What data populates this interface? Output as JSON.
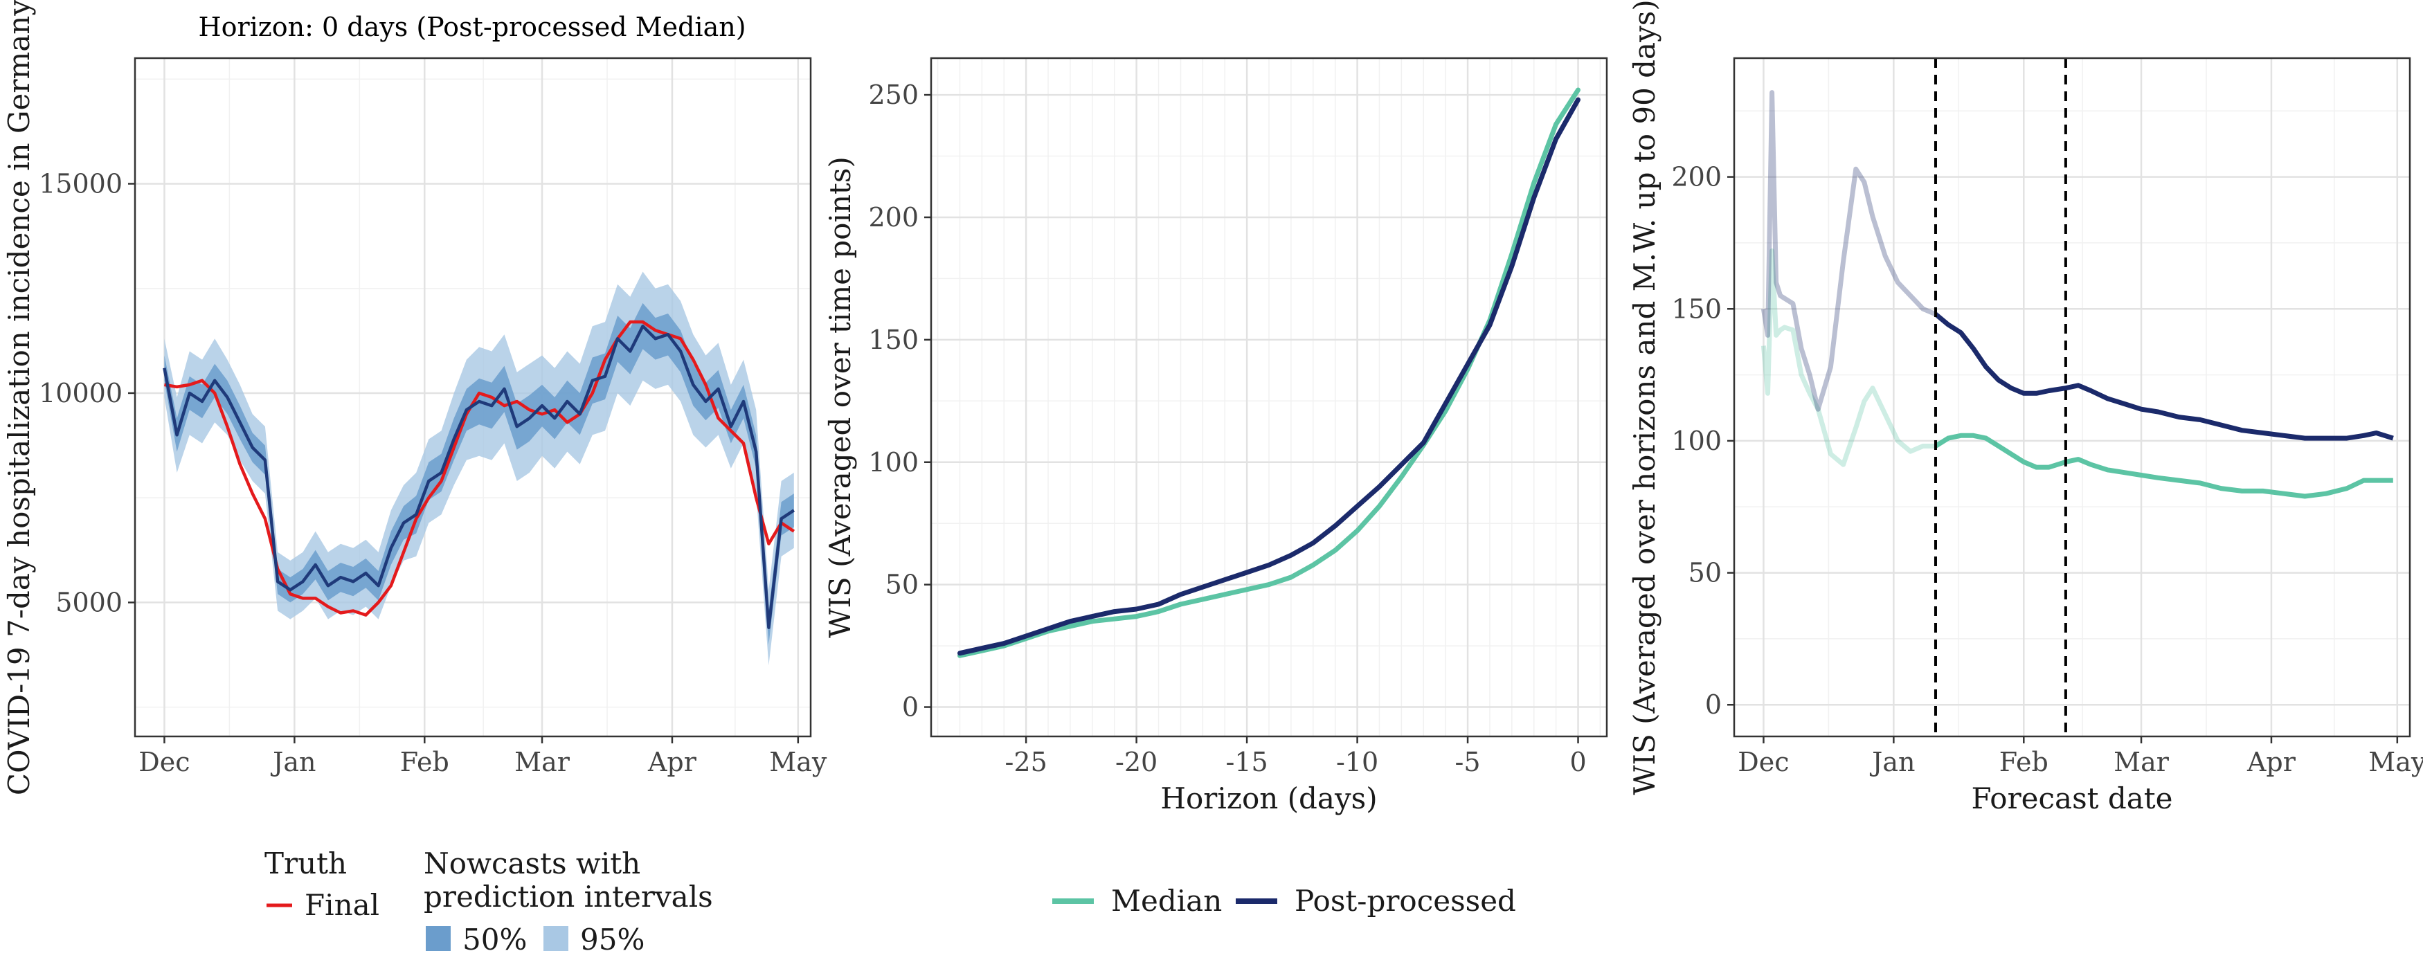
{
  "colors": {
    "truth": "#e41a1c",
    "nowcast_line": "#1f3a7a",
    "band50": "#6b9dcc",
    "band95": "#a9c8e4",
    "median": "#5cc4a4",
    "postprocessed": "#1b2a6b"
  },
  "legends": {
    "truth_title": "Truth",
    "truth_final": "Final",
    "nowcast_title_line1": "Nowcasts with",
    "nowcast_title_line2": "prediction intervals",
    "pi50": "50%",
    "pi95": "95%",
    "median": "Median",
    "postprocessed": "Post-processed"
  },
  "chart_data": [
    {
      "type": "line",
      "title": "Horizon: 0 days (Post-processed Median)",
      "xlabel": "",
      "ylabel": "COVID-19 7-day hospitalization incidence in Germany",
      "ylim": [
        1800,
        18000
      ],
      "yticks": [
        5000,
        10000,
        15000
      ],
      "xlim": [
        "2021-11-24",
        "2022-05-04"
      ],
      "xticks": [
        {
          "date": "2021-12-01",
          "label": "Dec"
        },
        {
          "date": "2022-01-01",
          "label": "Jan"
        },
        {
          "date": "2022-02-01",
          "label": "Feb"
        },
        {
          "date": "2022-03-01",
          "label": "Mar"
        },
        {
          "date": "2022-04-01",
          "label": "Apr"
        },
        {
          "date": "2022-05-01",
          "label": "May"
        }
      ],
      "grid": true,
      "series": [
        {
          "name": "Final",
          "x": [
            "2021-12-01",
            "2021-12-04",
            "2021-12-07",
            "2021-12-10",
            "2021-12-13",
            "2021-12-16",
            "2021-12-19",
            "2021-12-22",
            "2021-12-25",
            "2021-12-28",
            "2021-12-31",
            "2022-01-03",
            "2022-01-06",
            "2022-01-09",
            "2022-01-12",
            "2022-01-15",
            "2022-01-18",
            "2022-01-21",
            "2022-01-24",
            "2022-01-27",
            "2022-01-30",
            "2022-02-02",
            "2022-02-05",
            "2022-02-08",
            "2022-02-11",
            "2022-02-14",
            "2022-02-17",
            "2022-02-20",
            "2022-02-23",
            "2022-02-26",
            "2022-03-01",
            "2022-03-04",
            "2022-03-07",
            "2022-03-10",
            "2022-03-13",
            "2022-03-16",
            "2022-03-19",
            "2022-03-22",
            "2022-03-25",
            "2022-03-28",
            "2022-03-31",
            "2022-04-03",
            "2022-04-06",
            "2022-04-09",
            "2022-04-12",
            "2022-04-15",
            "2022-04-18",
            "2022-04-21",
            "2022-04-24",
            "2022-04-27",
            "2022-04-30"
          ],
          "y": [
            10200,
            10150,
            10200,
            10300,
            10000,
            9200,
            8300,
            7600,
            7000,
            5800,
            5200,
            5100,
            5100,
            4900,
            4750,
            4800,
            4700,
            5000,
            5400,
            6200,
            7000,
            7500,
            7900,
            8700,
            9500,
            10000,
            9900,
            9700,
            9800,
            9600,
            9500,
            9600,
            9300,
            9500,
            10000,
            10800,
            11300,
            11700,
            11700,
            11500,
            11400,
            11300,
            10800,
            10200,
            9400,
            9100,
            8800,
            7500,
            6400,
            6900,
            6700
          ]
        },
        {
          "name": "Post-processed Median",
          "x": [
            "2021-12-01",
            "2021-12-04",
            "2021-12-07",
            "2021-12-10",
            "2021-12-13",
            "2021-12-16",
            "2021-12-19",
            "2021-12-22",
            "2021-12-25",
            "2021-12-28",
            "2021-12-31",
            "2022-01-03",
            "2022-01-06",
            "2022-01-09",
            "2022-01-12",
            "2022-01-15",
            "2022-01-18",
            "2022-01-21",
            "2022-01-24",
            "2022-01-27",
            "2022-01-30",
            "2022-02-02",
            "2022-02-05",
            "2022-02-08",
            "2022-02-11",
            "2022-02-14",
            "2022-02-17",
            "2022-02-20",
            "2022-02-23",
            "2022-02-26",
            "2022-03-01",
            "2022-03-04",
            "2022-03-07",
            "2022-03-10",
            "2022-03-13",
            "2022-03-16",
            "2022-03-19",
            "2022-03-22",
            "2022-03-25",
            "2022-03-28",
            "2022-03-31",
            "2022-04-03",
            "2022-04-06",
            "2022-04-09",
            "2022-04-12",
            "2022-04-15",
            "2022-04-18",
            "2022-04-21",
            "2022-04-24",
            "2022-04-27",
            "2022-04-30"
          ],
          "y": [
            10600,
            9000,
            10000,
            9800,
            10300,
            9900,
            9300,
            8700,
            8400,
            5500,
            5300,
            5500,
            5900,
            5400,
            5600,
            5500,
            5700,
            5400,
            6300,
            6900,
            7100,
            7900,
            8100,
            8900,
            9600,
            9800,
            9700,
            10100,
            9200,
            9400,
            9700,
            9400,
            9800,
            9500,
            10300,
            10400,
            11300,
            11000,
            11600,
            11300,
            11400,
            11000,
            10200,
            9800,
            10100,
            9200,
            9800,
            8600,
            4400,
            7000,
            7200
          ]
        }
      ],
      "bands": [
        {
          "name": "95%",
          "halfwidth": [
            700,
            900,
            1000,
            1000,
            1000,
            900,
            900,
            800,
            800,
            700,
            700,
            700,
            800,
            800,
            800,
            800,
            800,
            800,
            900,
            900,
            1000,
            1000,
            1000,
            1100,
            1200,
            1300,
            1300,
            1300,
            1300,
            1300,
            1200,
            1200,
            1200,
            1200,
            1300,
            1300,
            1300,
            1300,
            1300,
            1200,
            1200,
            1200,
            1200,
            1100,
            1100,
            1000,
            1000,
            1000,
            900,
            900,
            900
          ]
        },
        {
          "name": "50%",
          "halfwidth": [
            300,
            400,
            400,
            400,
            400,
            400,
            400,
            350,
            350,
            300,
            300,
            300,
            350,
            350,
            350,
            350,
            350,
            350,
            400,
            400,
            450,
            450,
            450,
            500,
            500,
            550,
            550,
            550,
            550,
            550,
            500,
            500,
            500,
            500,
            550,
            550,
            550,
            550,
            550,
            500,
            500,
            500,
            500,
            450,
            450,
            400,
            400,
            400,
            400,
            400,
            400
          ]
        }
      ]
    },
    {
      "type": "line",
      "title": "",
      "xlabel": "Horizon (days)",
      "ylabel": "WIS (Averaged over time points)",
      "xlim": [
        -29.3,
        1.3
      ],
      "ylim": [
        -12,
        265
      ],
      "xticks": [
        -25,
        -20,
        -15,
        -10,
        -5,
        0
      ],
      "yticks": [
        0,
        50,
        100,
        150,
        200,
        250
      ],
      "grid": true,
      "x": [
        -28,
        -27,
        -26,
        -25,
        -24,
        -23,
        -22,
        -21,
        -20,
        -19,
        -18,
        -17,
        -16,
        -15,
        -14,
        -13,
        -12,
        -11,
        -10,
        -9,
        -8,
        -7,
        -6,
        -5,
        -4,
        -3,
        -2,
        -1,
        0
      ],
      "series": [
        {
          "name": "Median",
          "values": [
            21,
            23,
            25,
            28,
            31,
            33,
            35,
            36,
            37,
            39,
            42,
            44,
            46,
            48,
            50,
            53,
            58,
            64,
            72,
            82,
            94,
            107,
            121,
            138,
            158,
            185,
            214,
            238,
            252
          ]
        },
        {
          "name": "Post-processed",
          "values": [
            22,
            24,
            26,
            29,
            32,
            35,
            37,
            39,
            40,
            42,
            46,
            49,
            52,
            55,
            58,
            62,
            67,
            74,
            82,
            90,
            99,
            108,
            124,
            140,
            156,
            180,
            208,
            232,
            248
          ]
        }
      ]
    },
    {
      "type": "line",
      "title": "",
      "xlabel": "Forecast date",
      "ylabel": "WIS (Averaged over horizons and M.W. up to 90 days)",
      "xlim": [
        "2021-11-24",
        "2022-05-04"
      ],
      "ylim": [
        -12,
        245
      ],
      "yticks": [
        0,
        50,
        100,
        150,
        200
      ],
      "xticks": [
        {
          "date": "2021-12-01",
          "label": "Dec"
        },
        {
          "date": "2022-01-01",
          "label": "Jan"
        },
        {
          "date": "2022-02-01",
          "label": "Feb"
        },
        {
          "date": "2022-03-01",
          "label": "Mar"
        },
        {
          "date": "2022-04-01",
          "label": "Apr"
        },
        {
          "date": "2022-05-01",
          "label": "May"
        }
      ],
      "grid": true,
      "vlines": [
        "2022-01-11",
        "2022-02-11"
      ],
      "series": [
        {
          "name": "Median",
          "x": [
            "2021-12-01",
            "2021-12-02",
            "2021-12-03",
            "2021-12-04",
            "2021-12-05",
            "2021-12-06",
            "2021-12-08",
            "2021-12-10",
            "2021-12-12",
            "2021-12-14",
            "2021-12-17",
            "2021-12-20",
            "2021-12-23",
            "2021-12-25",
            "2021-12-27",
            "2021-12-30",
            "2022-01-02",
            "2022-01-05",
            "2022-01-08",
            "2022-01-11",
            "2022-01-14",
            "2022-01-17",
            "2022-01-20",
            "2022-01-23",
            "2022-01-26",
            "2022-01-29",
            "2022-02-01",
            "2022-02-04",
            "2022-02-07",
            "2022-02-11",
            "2022-02-14",
            "2022-02-17",
            "2022-02-21",
            "2022-02-25",
            "2022-03-01",
            "2022-03-05",
            "2022-03-10",
            "2022-03-15",
            "2022-03-20",
            "2022-03-25",
            "2022-03-30",
            "2022-04-04",
            "2022-04-09",
            "2022-04-14",
            "2022-04-19",
            "2022-04-23",
            "2022-04-26",
            "2022-04-30"
          ],
          "values": [
            136,
            118,
            172,
            140,
            142,
            143,
            142,
            125,
            118,
            112,
            95,
            91,
            105,
            115,
            120,
            110,
            100,
            96,
            98,
            98,
            101,
            102,
            102,
            101,
            98,
            95,
            92,
            90,
            90,
            92,
            93,
            91,
            89,
            88,
            87,
            86,
            85,
            84,
            82,
            81,
            81,
            80,
            79,
            80,
            82,
            85,
            85,
            85
          ]
        },
        {
          "name": "Post-processed",
          "x": [
            "2021-12-01",
            "2021-12-02",
            "2021-12-03",
            "2021-12-04",
            "2021-12-05",
            "2021-12-06",
            "2021-12-08",
            "2021-12-10",
            "2021-12-12",
            "2021-12-14",
            "2021-12-17",
            "2021-12-20",
            "2021-12-23",
            "2021-12-25",
            "2021-12-27",
            "2021-12-30",
            "2022-01-02",
            "2022-01-05",
            "2022-01-08",
            "2022-01-11",
            "2022-01-14",
            "2022-01-17",
            "2022-01-20",
            "2022-01-23",
            "2022-01-26",
            "2022-01-29",
            "2022-02-01",
            "2022-02-04",
            "2022-02-07",
            "2022-02-11",
            "2022-02-14",
            "2022-02-17",
            "2022-02-21",
            "2022-02-25",
            "2022-03-01",
            "2022-03-05",
            "2022-03-10",
            "2022-03-15",
            "2022-03-20",
            "2022-03-25",
            "2022-03-30",
            "2022-04-04",
            "2022-04-09",
            "2022-04-14",
            "2022-04-19",
            "2022-04-23",
            "2022-04-26",
            "2022-04-30"
          ],
          "values": [
            150,
            140,
            232,
            160,
            155,
            154,
            152,
            135,
            125,
            112,
            128,
            168,
            203,
            198,
            185,
            170,
            160,
            155,
            150,
            148,
            144,
            141,
            135,
            128,
            123,
            120,
            118,
            118,
            119,
            120,
            121,
            119,
            116,
            114,
            112,
            111,
            109,
            108,
            106,
            104,
            103,
            102,
            101,
            101,
            101,
            102,
            103,
            101
          ]
        }
      ]
    }
  ]
}
